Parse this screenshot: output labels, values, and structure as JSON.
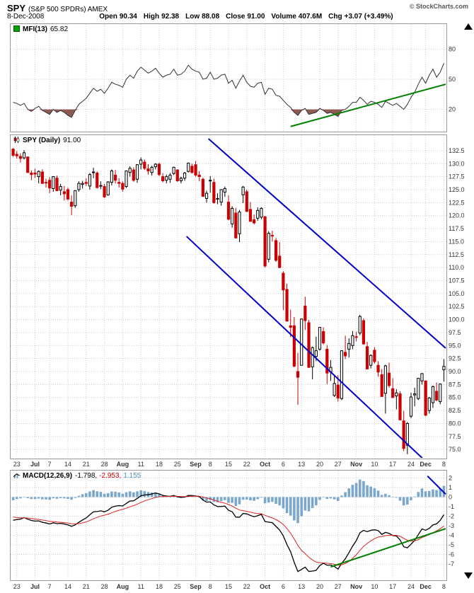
{
  "header": {
    "symbol": "SPY",
    "name": "(S&P 500 SPDRs) AMEX",
    "copyright": "© StockCharts.com",
    "date": "8-Dec-2008",
    "quote": [
      {
        "label": "Open",
        "value": "90.34"
      },
      {
        "label": "High",
        "value": "92.38"
      },
      {
        "label": "Low",
        "value": "88.08"
      },
      {
        "label": "Close",
        "value": "91.00"
      },
      {
        "label": "Volume",
        "value": "407.6M"
      },
      {
        "label": "Chg",
        "value": "+3.07 (+3.49%)"
      }
    ]
  },
  "panel_labels": {
    "mfi": {
      "name": "MFI(13)",
      "value": "65.82"
    },
    "price": {
      "name": "SPY (Daily)",
      "value": "91.00"
    },
    "macd": {
      "name": "MACD(12,26,9)",
      "v1": "-1.798,",
      "v2": "-2.953,",
      "v3": "1.155"
    }
  },
  "colors": {
    "up": "#000000",
    "up_fill": "#ffffff",
    "down": "#cc0000",
    "hist": "#7ba7cc",
    "macd_line": "#000000",
    "signal": "#dd2222",
    "trend": "#008000",
    "channel": "#0000cc",
    "mfi_line": "#333333",
    "mfi_fill": "#8f5a52",
    "grid": "#cccccc",
    "text": "#333333",
    "border": "#999999"
  },
  "chart_data": {
    "type": "multi-panel-stock-chart",
    "symbol": "SPY",
    "timeframe": "Daily",
    "x_dates": [
      "6/20",
      "6/23",
      "6/24",
      "6/25",
      "6/26",
      "6/27",
      "6/30",
      "7/1",
      "7/2",
      "7/3",
      "7/7",
      "7/8",
      "7/9",
      "7/10",
      "7/11",
      "7/14",
      "7/15",
      "7/16",
      "7/17",
      "7/18",
      "7/21",
      "7/22",
      "7/23",
      "7/24",
      "7/25",
      "7/28",
      "7/29",
      "7/30",
      "7/31",
      "8/1",
      "8/4",
      "8/5",
      "8/6",
      "8/7",
      "8/8",
      "8/11",
      "8/12",
      "8/13",
      "8/14",
      "8/15",
      "8/18",
      "8/19",
      "8/20",
      "8/21",
      "8/22",
      "8/25",
      "8/26",
      "8/27",
      "8/28",
      "8/29",
      "9/2",
      "9/3",
      "9/4",
      "9/5",
      "9/8",
      "9/9",
      "9/10",
      "9/11",
      "9/12",
      "9/15",
      "9/16",
      "9/17",
      "9/18",
      "9/19",
      "9/22",
      "9/23",
      "9/24",
      "9/25",
      "9/26",
      "9/29",
      "9/30",
      "10/1",
      "10/2",
      "10/3",
      "10/6",
      "10/7",
      "10/8",
      "10/9",
      "10/10",
      "10/13",
      "10/14",
      "10/15",
      "10/16",
      "10/17",
      "10/20",
      "10/21",
      "10/22",
      "10/23",
      "10/24",
      "10/27",
      "10/28",
      "10/29",
      "10/30",
      "10/31",
      "11/3",
      "11/4",
      "11/5",
      "11/6",
      "11/7",
      "11/10",
      "11/11",
      "11/12",
      "11/13",
      "11/14",
      "11/17",
      "11/18",
      "11/19",
      "11/20",
      "11/21",
      "11/24",
      "11/25",
      "11/26",
      "11/28",
      "12/1",
      "12/2",
      "12/3",
      "12/4",
      "12/5",
      "12/8"
    ],
    "x_ticks": [
      {
        "i": 1,
        "t": "23",
        "m": false
      },
      {
        "i": 6,
        "t": "Jul",
        "m": true
      },
      {
        "i": 10,
        "t": "7",
        "m": false
      },
      {
        "i": 15,
        "t": "14",
        "m": false
      },
      {
        "i": 20,
        "t": "21",
        "m": false
      },
      {
        "i": 25,
        "t": "28",
        "m": false
      },
      {
        "i": 30,
        "t": "Aug",
        "m": true
      },
      {
        "i": 35,
        "t": "11",
        "m": false
      },
      {
        "i": 40,
        "t": "18",
        "m": false
      },
      {
        "i": 45,
        "t": "25",
        "m": false
      },
      {
        "i": 50,
        "t": "Sep",
        "m": true
      },
      {
        "i": 54,
        "t": "8",
        "m": false
      },
      {
        "i": 59,
        "t": "15",
        "m": false
      },
      {
        "i": 64,
        "t": "22",
        "m": false
      },
      {
        "i": 69,
        "t": "Oct",
        "m": true
      },
      {
        "i": 74,
        "t": "6",
        "m": false
      },
      {
        "i": 79,
        "t": "13",
        "m": false
      },
      {
        "i": 84,
        "t": "20",
        "m": false
      },
      {
        "i": 89,
        "t": "27",
        "m": false
      },
      {
        "i": 94,
        "t": "Nov",
        "m": true
      },
      {
        "i": 99,
        "t": "10",
        "m": false
      },
      {
        "i": 104,
        "t": "17",
        "m": false
      },
      {
        "i": 109,
        "t": "24",
        "m": false
      },
      {
        "i": 113,
        "t": "Dec",
        "m": true
      },
      {
        "i": 118,
        "t": "8",
        "m": false
      }
    ],
    "panels": [
      {
        "id": "mfi",
        "type": "line",
        "label": "MFI(13)",
        "current": 65.82,
        "range": [
          0,
          95
        ],
        "ticks": [
          80,
          50,
          20
        ],
        "tick_labels": [
          "80",
          "50",
          "20"
        ],
        "oversold": 20,
        "values": [
          27,
          26,
          24,
          26,
          20,
          18,
          21,
          23,
          19,
          17,
          15,
          20,
          17,
          19,
          17,
          14,
          12,
          19,
          25,
          28,
          31,
          36,
          41,
          38,
          40,
          36,
          41,
          47,
          45,
          44,
          42,
          50,
          54,
          51,
          58,
          62,
          59,
          56,
          58,
          61,
          56,
          52,
          54,
          55,
          60,
          54,
          55,
          58,
          64,
          60,
          58,
          57,
          50,
          51,
          57,
          50,
          51,
          54,
          55,
          46,
          49,
          41,
          48,
          54,
          47,
          43,
          42,
          46,
          47,
          35,
          41,
          40,
          34,
          33,
          29,
          25,
          22,
          17,
          14,
          19,
          21,
          15,
          16,
          17,
          21,
          19,
          16,
          17,
          15,
          13,
          19,
          20,
          23,
          27,
          27,
          32,
          29,
          25,
          28,
          27,
          25,
          22,
          28,
          26,
          24,
          26,
          23,
          20,
          25,
          32,
          37,
          45,
          52,
          46,
          54,
          60,
          52,
          57,
          65.82
        ],
        "trendline": {
          "x1": 76,
          "y1": 3,
          "x2": 118.5,
          "y2": 45
        }
      },
      {
        "id": "price",
        "type": "candlestick",
        "label": "SPY (Daily)",
        "last": 91.0,
        "range": [
          73.8,
          134.8
        ],
        "ticks": [
          132.5,
          130,
          127.5,
          125,
          122.5,
          120,
          117.5,
          115,
          112.5,
          110,
          107.5,
          105,
          102.5,
          100,
          97.5,
          95,
          92.5,
          90,
          87.5,
          85,
          82.5,
          80,
          77.5,
          75
        ],
        "tick_labels": [
          "132.5",
          "130.0",
          "127.5",
          "125.0",
          "122.5",
          "120.0",
          "117.5",
          "115.0",
          "112.5",
          "110.0",
          "107.5",
          "105.0",
          "102.5",
          "100.0",
          "97.5",
          "95.0",
          "92.5",
          "90.0",
          "87.5",
          "85.0",
          "82.5",
          "80.0",
          "77.5",
          "75.0"
        ],
        "open": [
          132.8,
          131.8,
          131.4,
          131.1,
          131.3,
          128.2,
          128.2,
          127.5,
          128.4,
          126.4,
          126.8,
          125.2,
          127.2,
          124.9,
          124.6,
          125.0,
          122.6,
          121.9,
          125.0,
          126.0,
          126.4,
          125.7,
          128.3,
          128.2,
          125.8,
          125.6,
          124.0,
          126.4,
          127.8,
          126.4,
          126.2,
          125.6,
          128.3,
          128.8,
          127.0,
          129.9,
          130.3,
          129.0,
          128.3,
          129.4,
          129.9,
          127.5,
          126.8,
          127.0,
          128.1,
          128.8,
          126.7,
          127.2,
          128.5,
          129.5,
          129.8,
          127.8,
          127.0,
          123.3,
          126.7,
          126.4,
          123.2,
          122.6,
          124.5,
          122.6,
          118.4,
          120.5,
          116.5,
          124.0,
          124.6,
          121.2,
          119.2,
          119.5,
          119.7,
          119.8,
          111.6,
          116.2,
          115.2,
          112.2,
          108.9,
          105.8,
          98.8,
          98.8,
          90.0,
          91.2,
          102.6,
          99.4,
          90.9,
          92.9,
          94.3,
          97.7,
          94.3,
          89.9,
          85.4,
          87.4,
          84.8,
          93.7,
          94.3,
          95.0,
          96.7,
          97.4,
          99.8,
          94.8,
          91.2,
          94.1,
          91.2,
          89.4,
          85.8,
          89.7,
          86.7,
          85.3,
          85.7,
          80.5,
          75.8,
          81.4,
          85.5,
          84.8,
          88.2,
          88.2,
          82.5,
          84.0,
          86.2,
          84.2,
          90.34
        ],
        "high": [
          133.0,
          132.4,
          132.0,
          132.6,
          131.3,
          128.7,
          129.0,
          128.7,
          128.9,
          127.1,
          127.4,
          127.6,
          127.7,
          126.1,
          125.7,
          125.4,
          123.9,
          124.9,
          126.6,
          126.7,
          127.2,
          128.2,
          129.2,
          128.5,
          126.6,
          126.1,
          126.6,
          128.9,
          128.8,
          127.2,
          126.6,
          128.7,
          129.5,
          129.3,
          129.9,
          131.2,
          130.8,
          129.9,
          129.6,
          130.1,
          130.2,
          128.2,
          127.9,
          128.2,
          129.4,
          128.9,
          127.5,
          128.4,
          130.2,
          130.0,
          130.5,
          128.6,
          127.3,
          124.8,
          127.6,
          127.1,
          124.3,
          125.1,
          125.6,
          123.9,
          121.8,
          121.5,
          121.1,
          125.7,
          125.0,
          122.6,
          120.2,
          121.6,
          121.6,
          119.9,
          117.0,
          117.1,
          115.7,
          114.9,
          109.3,
          106.9,
          101.9,
          100.5,
          93.6,
          100.2,
          104.4,
          99.9,
          94.8,
          96.7,
          98.5,
          98.5,
          95.1,
          92.2,
          89.3,
          89.3,
          94.1,
          96.9,
          96.4,
          97.8,
          97.6,
          100.9,
          100.2,
          95.7,
          93.3,
          94.7,
          92.0,
          90.5,
          91.3,
          91.7,
          88.7,
          86.6,
          86.2,
          82.4,
          80.3,
          85.9,
          86.9,
          88.8,
          89.7,
          88.2,
          85.1,
          87.3,
          87.9,
          87.7,
          92.38
        ],
        "low": [
          131.3,
          131.0,
          130.2,
          130.8,
          128.2,
          126.8,
          127.3,
          126.2,
          126.1,
          125.4,
          124.3,
          124.6,
          124.7,
          123.9,
          122.9,
          122.9,
          120.1,
          121.5,
          124.6,
          125.2,
          125.7,
          125.0,
          127.2,
          125.2,
          125.1,
          123.4,
          123.8,
          125.8,
          126.2,
          125.4,
          124.6,
          125.3,
          127.5,
          126.5,
          126.3,
          128.9,
          128.8,
          127.9,
          127.7,
          128.9,
          127.6,
          126.4,
          126.2,
          126.3,
          127.8,
          126.5,
          126.2,
          126.7,
          128.3,
          128.1,
          127.5,
          126.6,
          123.6,
          122.5,
          124.4,
          122.3,
          122.2,
          121.9,
          123.6,
          119.1,
          117.7,
          115.6,
          114.9,
          122.4,
          120.7,
          118.8,
          118.3,
          119.0,
          119.3,
          110.0,
          111.0,
          115.0,
          111.1,
          109.9,
          101.8,
          99.6,
          96.6,
          90.9,
          83.6,
          91.2,
          98.0,
          90.7,
          88.5,
          92.0,
          94.0,
          95.2,
          87.6,
          88.2,
          85.1,
          84.2,
          84.5,
          92.4,
          92.7,
          94.3,
          95.8,
          97.0,
          95.2,
          90.4,
          90.6,
          91.5,
          89.0,
          85.1,
          81.9,
          86.9,
          84.9,
          82.7,
          80.6,
          74.7,
          74.1,
          81.0,
          83.3,
          84.5,
          87.5,
          81.4,
          81.9,
          83.0,
          84.3,
          83.7,
          88.08
        ],
        "close": [
          131.6,
          131.5,
          131.0,
          132.1,
          128.3,
          127.9,
          128.0,
          128.5,
          126.2,
          126.3,
          125.3,
          127.5,
          124.8,
          125.6,
          124.2,
          123.2,
          121.8,
          124.8,
          126.2,
          126.2,
          126.2,
          127.9,
          128.4,
          125.4,
          125.8,
          123.6,
          126.5,
          128.6,
          126.8,
          126.2,
          125.1,
          128.6,
          129.1,
          126.8,
          129.8,
          130.7,
          129.1,
          128.6,
          129.3,
          129.9,
          127.9,
          126.7,
          127.5,
          127.8,
          129.3,
          126.7,
          127.2,
          128.2,
          130.1,
          128.3,
          127.8,
          127.5,
          123.7,
          124.3,
          126.8,
          122.5,
          123.3,
          125.0,
          125.2,
          119.3,
          121.4,
          115.7,
          120.7,
          125.5,
          120.8,
          118.9,
          118.6,
          121.0,
          121.4,
          110.3,
          116.6,
          116.1,
          111.4,
          110.0,
          105.7,
          99.7,
          98.5,
          91.0,
          88.9,
          100.1,
          99.8,
          90.8,
          94.6,
          94.0,
          98.5,
          95.5,
          89.7,
          90.8,
          87.7,
          84.9,
          94.0,
          93.0,
          95.4,
          96.9,
          96.6,
          100.6,
          95.3,
          90.5,
          93.1,
          91.9,
          89.9,
          85.2,
          91.1,
          87.3,
          85.0,
          85.9,
          80.7,
          75.2,
          80.0,
          85.1,
          85.7,
          88.7,
          89.6,
          81.6,
          84.9,
          87.1,
          84.5,
          87.6,
          91.0
        ],
        "channel": [
          {
            "x1": 53.5,
            "y1": 134.8,
            "x2": 118.5,
            "y2": 94.5
          },
          {
            "x1": 47.5,
            "y1": 116.0,
            "x2": 118.5,
            "y2": 69.1
          }
        ]
      },
      {
        "id": "macd",
        "type": "line+histogram",
        "label": "MACD(12,26,9)",
        "last_macd": -1.798,
        "last_signal": -2.953,
        "last_hist": 1.155,
        "range": [
          -8.4,
          2.4
        ],
        "ticks": [
          2,
          1,
          0,
          -1,
          -2,
          -3,
          -4,
          -5,
          -6,
          -7
        ],
        "tick_labels": [
          "2",
          "1",
          "0",
          "-1",
          "-2",
          "-3",
          "-4",
          "-5",
          "-6",
          "-7"
        ],
        "derive": {
          "ema12_seed": 133.0,
          "ema26_seed": 135.5,
          "signal_seed": -2.0
        },
        "trendline": {
          "x1": 87,
          "y1": -7.3,
          "x2": 118.5,
          "y2": -3.3
        },
        "channel_tail": {
          "x1": 113.5,
          "y1": 2.2,
          "x2": 118.5,
          "y2": 0.3
        }
      }
    ]
  }
}
